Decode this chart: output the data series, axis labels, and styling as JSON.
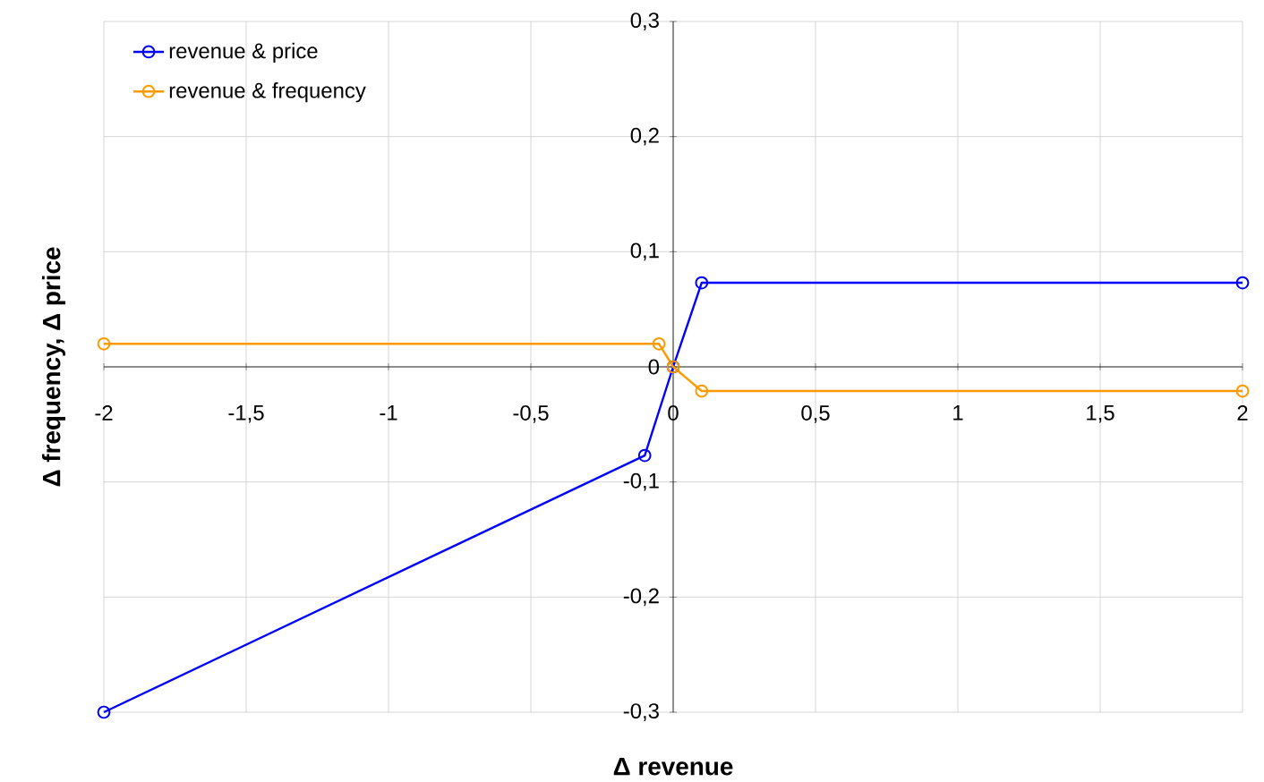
{
  "chart_data": {
    "type": "line",
    "xlabel": "Δ revenue",
    "ylabel": "Δ frequency, Δ price",
    "xlim": [
      -2,
      2
    ],
    "ylim": [
      -0.3,
      0.3
    ],
    "xticks": [
      {
        "value": -2,
        "label": "-2"
      },
      {
        "value": -1.5,
        "label": "-1,5"
      },
      {
        "value": -1,
        "label": "-1"
      },
      {
        "value": -0.5,
        "label": "-0,5"
      },
      {
        "value": 0,
        "label": "0"
      },
      {
        "value": 0.5,
        "label": "0,5"
      },
      {
        "value": 1,
        "label": "1"
      },
      {
        "value": 1.5,
        "label": "1,5"
      },
      {
        "value": 2,
        "label": "2"
      }
    ],
    "yticks": [
      {
        "value": -0.3,
        "label": "-0,3"
      },
      {
        "value": -0.2,
        "label": "-0,2"
      },
      {
        "value": -0.1,
        "label": "-0,1"
      },
      {
        "value": 0,
        "label": "0"
      },
      {
        "value": 0.1,
        "label": "0,1"
      },
      {
        "value": 0.2,
        "label": "0,2"
      },
      {
        "value": 0.3,
        "label": "0,3"
      }
    ],
    "grid": true,
    "legend": "top left",
    "marker": "circle",
    "series": [
      {
        "name": "revenue & price",
        "color": "#0000ff",
        "x": [
          -2,
          -0.1,
          0,
          0.1,
          2
        ],
        "values": [
          -0.3,
          -0.077,
          0,
          0.073,
          0.073
        ]
      },
      {
        "name": "revenue & frequency",
        "color": "#ff9900",
        "x": [
          -2,
          -0.05,
          0,
          0.1,
          2
        ],
        "values": [
          0.02,
          0.02,
          0,
          -0.021,
          -0.021
        ]
      }
    ]
  }
}
